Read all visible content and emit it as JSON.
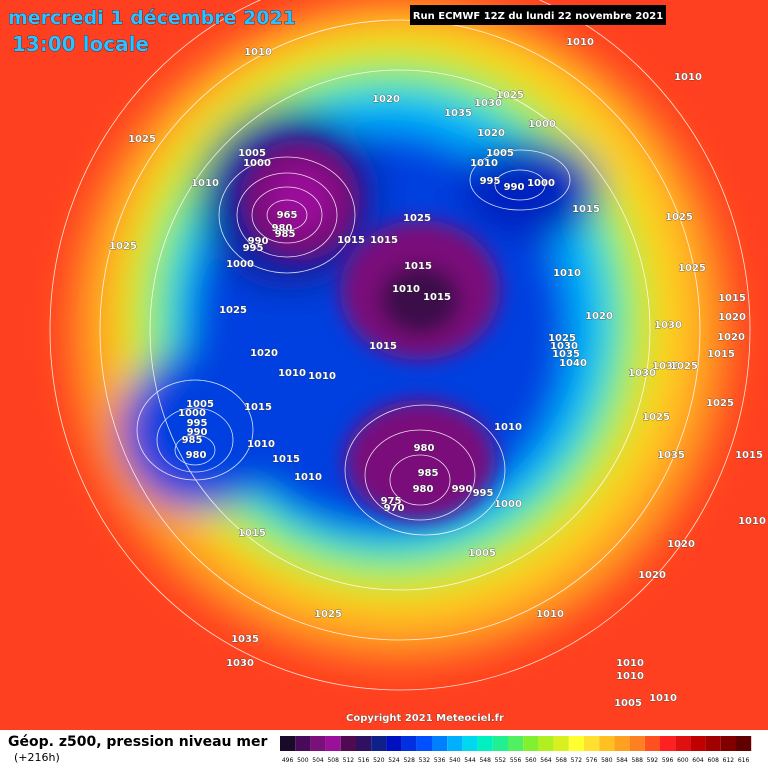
{
  "header": {
    "title": "mercredi 1 décembre 2021",
    "time": "13:00 locale",
    "run": "Run ECMWF 12Z du lundi 22 novembre 2021"
  },
  "copyright": "Copyright 2021 Meteociel.fr",
  "footer": {
    "caption": "Géop. z500, pression niveau mer",
    "lead": "(+216h)"
  },
  "isobar_labels": [
    1010,
    1025,
    1010,
    1005,
    1000,
    965,
    980,
    985,
    990,
    995,
    1000,
    1025,
    1025,
    1020,
    1010,
    1010,
    1015,
    1005,
    1000,
    995,
    990,
    985,
    980,
    1010,
    1015,
    1010,
    1015,
    1020,
    1035,
    1030,
    1025,
    1020,
    1000,
    1005,
    1010,
    995,
    990,
    1000,
    1015,
    1010,
    1010,
    1025,
    1025,
    1025,
    1015,
    1015,
    1015,
    1010,
    1015,
    1015,
    1010,
    1020,
    1025,
    1030,
    1035,
    1040,
    1030,
    1030,
    1030,
    1025,
    1015,
    1020,
    1020,
    1015,
    1025,
    1025,
    1035,
    1015,
    1010,
    980,
    985,
    980,
    990,
    995,
    1000,
    975,
    970,
    1005,
    1020,
    1020,
    1010,
    1010,
    1025,
    1035,
    1030,
    1010,
    1010,
    1010,
    1005
  ],
  "scale": {
    "values": [
      496,
      500,
      504,
      508,
      512,
      516,
      520,
      524,
      528,
      532,
      536,
      540,
      544,
      548,
      552,
      556,
      560,
      564,
      568,
      572,
      576,
      580,
      584,
      588,
      592,
      596,
      600,
      604,
      608,
      612,
      616
    ],
    "colors": [
      "#1a0a2a",
      "#4a0a5a",
      "#7a107a",
      "#9a109a",
      "#500a50",
      "#301060",
      "#10208a",
      "#0010c0",
      "#0030e0",
      "#0050ff",
      "#0080ff",
      "#00b0ff",
      "#00d8f0",
      "#00f0c0",
      "#20f090",
      "#50f060",
      "#80f030",
      "#b0f020",
      "#d8f020",
      "#ffff30",
      "#ffe030",
      "#ffc020",
      "#ffa020",
      "#ff8020",
      "#ff5020",
      "#ff2020",
      "#e01010",
      "#c00000",
      "#a00000",
      "#800000",
      "#600000"
    ]
  }
}
